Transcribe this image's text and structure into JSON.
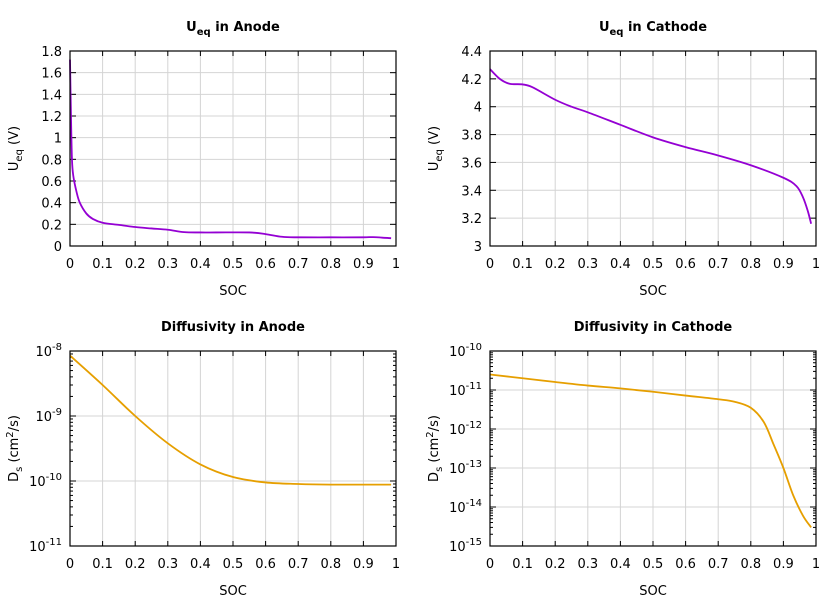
{
  "chart_data": [
    {
      "type": "line",
      "title": {
        "base": "U",
        "sub": "eq",
        "rest": " in Anode"
      },
      "xlabel": "SOC",
      "ylabel": {
        "base": "U",
        "sub": "eq",
        "rest": " (V)"
      },
      "xlim": [
        0,
        1
      ],
      "ylim": [
        0,
        1.8
      ],
      "yscale": "linear",
      "xticks": [
        "0",
        "0.1",
        "0.2",
        "0.3",
        "0.4",
        "0.5",
        "0.6",
        "0.7",
        "0.8",
        "0.9",
        "1"
      ],
      "yticks": [
        "0",
        "0.2",
        "0.4",
        "0.6",
        "0.8",
        "1",
        "1.2",
        "1.4",
        "1.6",
        "1.8"
      ],
      "grid": true,
      "color": "#9400d3",
      "x": [
        0,
        0.003,
        0.006,
        0.01,
        0.02,
        0.03,
        0.05,
        0.07,
        0.1,
        0.15,
        0.2,
        0.25,
        0.3,
        0.35,
        0.4,
        0.45,
        0.55,
        0.6,
        0.65,
        0.7,
        0.8,
        0.9,
        0.93,
        0.985
      ],
      "y": [
        1.72,
        1.2,
        0.8,
        0.65,
        0.5,
        0.4,
        0.3,
        0.25,
        0.215,
        0.195,
        0.175,
        0.162,
        0.15,
        0.128,
        0.125,
        0.125,
        0.125,
        0.11,
        0.085,
        0.08,
        0.08,
        0.08,
        0.082,
        0.072
      ]
    },
    {
      "type": "line",
      "title": {
        "base": "U",
        "sub": "eq",
        "rest": " in Cathode"
      },
      "xlabel": "SOC",
      "ylabel": {
        "base": "U",
        "sub": "eq",
        "rest": " (V)"
      },
      "xlim": [
        0,
        1
      ],
      "ylim": [
        3,
        4.4
      ],
      "yscale": "linear",
      "xticks": [
        "0",
        "0.1",
        "0.2",
        "0.3",
        "0.4",
        "0.5",
        "0.6",
        "0.7",
        "0.8",
        "0.9",
        "1"
      ],
      "yticks": [
        "3",
        "3.2",
        "3.4",
        "3.6",
        "3.8",
        "4",
        "4.2",
        "4.4"
      ],
      "grid": true,
      "color": "#9400d3",
      "x": [
        0,
        0.03,
        0.06,
        0.1,
        0.13,
        0.2,
        0.25,
        0.3,
        0.4,
        0.5,
        0.6,
        0.7,
        0.8,
        0.9,
        0.94,
        0.96,
        0.975,
        0.985
      ],
      "y": [
        4.27,
        4.2,
        4.165,
        4.16,
        4.14,
        4.05,
        4.0,
        3.96,
        3.87,
        3.78,
        3.71,
        3.65,
        3.58,
        3.49,
        3.43,
        3.35,
        3.25,
        3.16
      ]
    },
    {
      "type": "line",
      "title": {
        "base": "Diffusivity in Anode",
        "sub": "",
        "rest": ""
      },
      "xlabel": "SOC",
      "ylabel": {
        "base": "D",
        "sub": "s",
        "rest": " (cm",
        "sup": "2",
        "rest2": "/s)"
      },
      "xlim": [
        0,
        1
      ],
      "ylim": [
        1e-11,
        1e-08
      ],
      "yscale": "log",
      "xticks": [
        "0",
        "0.1",
        "0.2",
        "0.3",
        "0.4",
        "0.5",
        "0.6",
        "0.7",
        "0.8",
        "0.9",
        "1"
      ],
      "yticks": [
        "-11",
        "-10",
        "-9",
        "-8"
      ],
      "ytick_base": "10",
      "grid": true,
      "color": "#e69f00",
      "x": [
        0,
        0.1,
        0.2,
        0.3,
        0.4,
        0.5,
        0.6,
        0.7,
        0.8,
        0.9,
        0.985
      ],
      "y": [
        8.5e-09,
        3e-09,
        1e-09,
        3.8e-10,
        1.8e-10,
        1.15e-10,
        9.5e-11,
        9e-11,
        8.8e-11,
        8.8e-11,
        8.8e-11
      ]
    },
    {
      "type": "line",
      "title": {
        "base": "Diffusivity in Cathode",
        "sub": "",
        "rest": ""
      },
      "xlabel": "SOC",
      "ylabel": {
        "base": "D",
        "sub": "s",
        "rest": " (cm",
        "sup": "2",
        "rest2": "/s)"
      },
      "xlim": [
        0,
        1
      ],
      "ylim": [
        1e-15,
        1e-10
      ],
      "yscale": "log",
      "xticks": [
        "0",
        "0.1",
        "0.2",
        "0.3",
        "0.4",
        "0.5",
        "0.6",
        "0.7",
        "0.8",
        "0.9",
        "1"
      ],
      "yticks": [
        "-15",
        "-14",
        "-13",
        "-12",
        "-11",
        "-10"
      ],
      "ytick_base": "10",
      "grid": true,
      "color": "#e69f00",
      "x": [
        0,
        0.1,
        0.2,
        0.3,
        0.4,
        0.5,
        0.6,
        0.7,
        0.75,
        0.8,
        0.84,
        0.87,
        0.9,
        0.93,
        0.96,
        0.985
      ],
      "y": [
        2.5e-11,
        2e-11,
        1.6e-11,
        1.3e-11,
        1.1e-11,
        9e-12,
        7.2e-12,
        5.8e-12,
        5e-12,
        3.5e-12,
        1.5e-12,
        4e-13,
        1e-13,
        2e-14,
        6e-15,
        3e-15
      ]
    }
  ]
}
